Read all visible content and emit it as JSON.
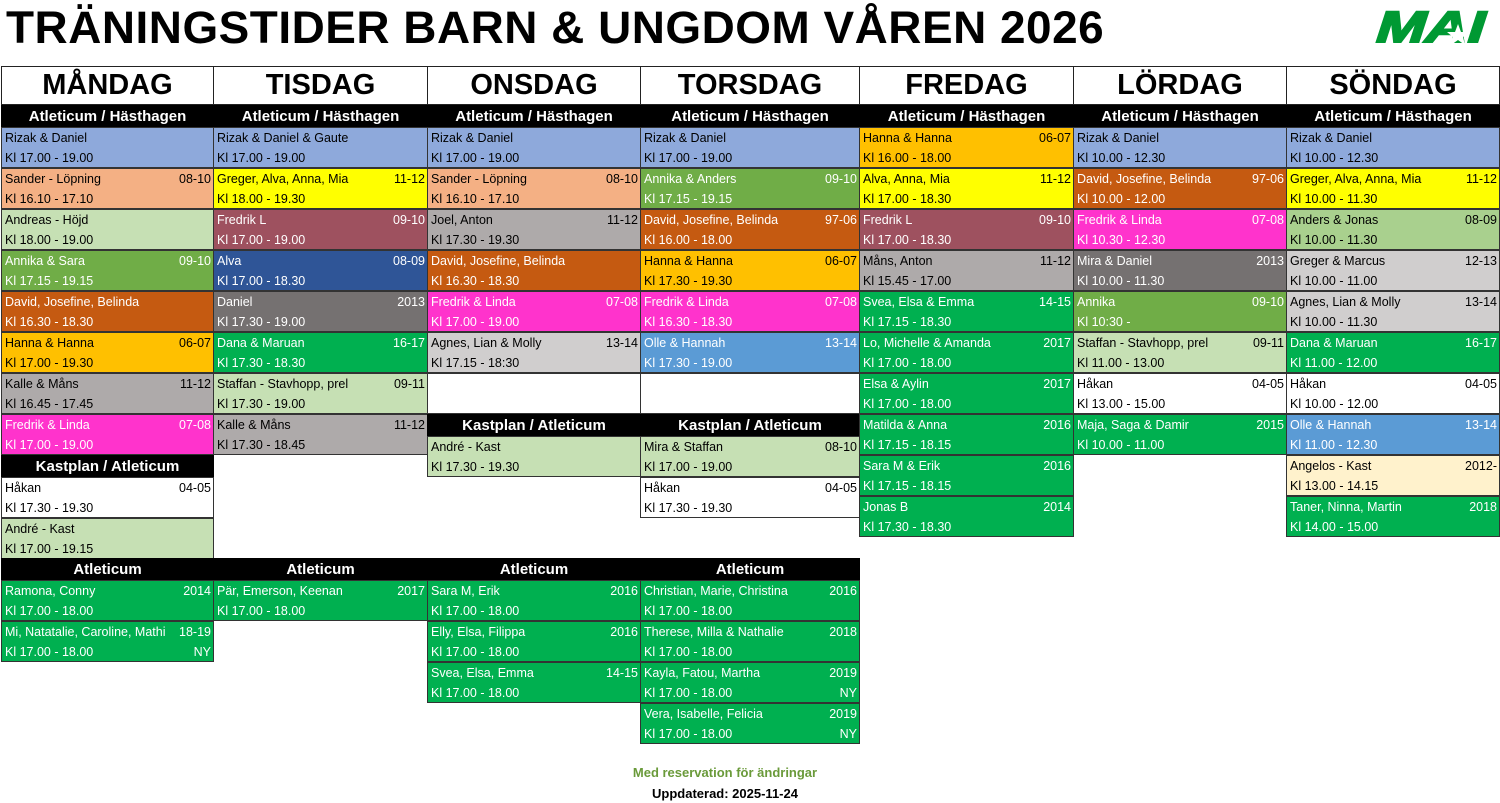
{
  "title": "TRÄNINGSTIDER BARN & UNGDOM VÅREN 2026",
  "logo_text": "MAI",
  "brand_color": "#009933",
  "footer": {
    "note": "Med reservation för ändringar",
    "updated": "Uppdaterad: 2025-11-24"
  },
  "palette": {
    "blue": {
      "bg": "#8EA9DB",
      "fg": "#000000"
    },
    "salmon": {
      "bg": "#F4B084",
      "fg": "#000000"
    },
    "lgreen": {
      "bg": "#C6E0B4",
      "fg": "#000000"
    },
    "sage": {
      "bg": "#A9D08E",
      "fg": "#000000"
    },
    "green": {
      "bg": "#70AD47",
      "fg": "#FFFFFF"
    },
    "brown": {
      "bg": "#C55A11",
      "fg": "#FFFFFF"
    },
    "gold": {
      "bg": "#FFC000",
      "fg": "#000000"
    },
    "gray": {
      "bg": "#AEAAAA",
      "fg": "#000000"
    },
    "lgray": {
      "bg": "#D0CECE",
      "fg": "#000000"
    },
    "dgray": {
      "bg": "#757171",
      "fg": "#FFFFFF"
    },
    "magenta": {
      "bg": "#FF33CC",
      "fg": "#FFFFFF"
    },
    "yellow": {
      "bg": "#FFFF00",
      "fg": "#000000"
    },
    "maroon": {
      "bg": "#9E515F",
      "fg": "#FFFFFF"
    },
    "dblue": {
      "bg": "#2F5597",
      "fg": "#FFFFFF"
    },
    "mblue": {
      "bg": "#5B9BD5",
      "fg": "#FFFFFF"
    },
    "bgreen": {
      "bg": "#00B050",
      "fg": "#FFFFFF"
    },
    "cream": {
      "bg": "#FFF2CC",
      "fg": "#000000"
    },
    "white": {
      "bg": "#FFFFFF",
      "fg": "#000000"
    }
  },
  "days": [
    {
      "name": "MÅNDAG",
      "sections": [
        {
          "title": "Atleticum / Hästhagen",
          "entries": [
            {
              "name": "Rizak & Daniel",
              "age": "",
              "time": "Kl 17.00 - 19.00",
              "note": "",
              "color": "blue"
            },
            {
              "name": "Sander  - Löpning",
              "age": "08-10",
              "time": "Kl 16.10 - 17.10",
              "note": "",
              "color": "salmon"
            },
            {
              "name": "Andreas - Höjd",
              "age": "",
              "time": "Kl 18.00 - 19.00",
              "note": "",
              "color": "lgreen"
            },
            {
              "name": "Annika & Sara",
              "age": "09-10",
              "time": "Kl 17.15 - 19.15",
              "note": "",
              "color": "green"
            },
            {
              "name": "David, Josefine, Belinda",
              "age": "",
              "time": "Kl 16.30 - 18.30",
              "note": "",
              "color": "brown"
            },
            {
              "name": "Hanna & Hanna",
              "age": "06-07",
              "time": "Kl 17.00 - 19.30",
              "note": "",
              "color": "gold"
            },
            {
              "name": "Kalle & Måns",
              "age": "11-12",
              "time": "Kl 16.45 - 17.45",
              "note": "",
              "color": "gray"
            },
            {
              "name": "Fredrik & Linda",
              "age": "07-08",
              "time": "Kl 17.00 - 19.00",
              "note": "",
              "color": "magenta"
            }
          ]
        },
        {
          "title": "Kastplan / Atleticum",
          "entries": [
            {
              "name": "Håkan",
              "age": "04-05",
              "time": "Kl 17.30 - 19.30",
              "note": "",
              "color": "white"
            },
            {
              "name": "André - Kast",
              "age": "",
              "time": "Kl 17.00 - 19.15",
              "note": "",
              "color": "lgreen"
            }
          ]
        },
        {
          "title": "Atleticum",
          "entries": [
            {
              "name": "Ramona, Conny",
              "age": "2014",
              "time": "Kl 17.00 - 18.00",
              "note": "",
              "color": "bgreen"
            },
            {
              "name": "Mi, Natatalie, Caroline, Mathi",
              "age": "18-19",
              "time": "Kl 17.00 - 18.00",
              "note": "NY",
              "color": "bgreen"
            }
          ]
        }
      ]
    },
    {
      "name": "TISDAG",
      "sections": [
        {
          "title": "Atleticum / Hästhagen",
          "entries": [
            {
              "name": "Rizak & Daniel & Gaute",
              "age": "",
              "time": "Kl 17.00 - 19.00",
              "note": "",
              "color": "blue"
            },
            {
              "name": "Greger, Alva, Anna, Mia",
              "age": "11-12",
              "time": "Kl 18.00 - 19.30",
              "note": "",
              "color": "yellow"
            },
            {
              "name": "Fredrik L",
              "age": "09-10",
              "time": "Kl 17.00 - 19.00",
              "note": "",
              "color": "maroon"
            },
            {
              "name": "Alva",
              "age": "08-09",
              "time": "Kl 17.00 - 18.30",
              "note": "",
              "color": "dblue"
            },
            {
              "name": "Daniel",
              "age": "2013",
              "time": "Kl 17.30 - 19.00",
              "note": "",
              "color": "dgray"
            },
            {
              "name": "Dana & Maruan",
              "age": "16-17",
              "time": "Kl 17.30 - 18.30",
              "note": "",
              "color": "bgreen"
            },
            {
              "name": "Staffan - Stavhopp, prel",
              "age": "09-11",
              "time": "Kl 17.30 - 19.00",
              "note": "",
              "color": "lgreen"
            },
            {
              "name": "Kalle & Måns",
              "age": "11-12",
              "time": "Kl 17.30 - 18.45",
              "note": "",
              "color": "gray"
            }
          ]
        },
        {
          "title": "Atleticum",
          "entries": [
            {
              "name": "Pär, Emerson, Keenan",
              "age": "2017",
              "time": "Kl 17.00 - 18.00",
              "note": "",
              "color": "bgreen"
            }
          ]
        }
      ]
    },
    {
      "name": "ONSDAG",
      "sections": [
        {
          "title": "Atleticum / Hästhagen",
          "entries": [
            {
              "name": "Rizak & Daniel",
              "age": "",
              "time": "Kl 17.00 - 19.00",
              "note": "",
              "color": "blue"
            },
            {
              "name": "Sander - Löpning",
              "age": "08-10",
              "time": "Kl 16.10 - 17.10",
              "note": "",
              "color": "salmon"
            },
            {
              "name": "Joel, Anton",
              "age": "11-12",
              "time": "Kl 17.30 - 19.30",
              "note": "",
              "color": "gray"
            },
            {
              "name": "David, Josefine, Belinda",
              "age": "",
              "time": "Kl 16.30 - 18.30",
              "note": "",
              "color": "brown"
            },
            {
              "name": "Fredrik & Linda",
              "age": "07-08",
              "time": "Kl 17.00 - 19.00",
              "note": "",
              "color": "magenta"
            },
            {
              "name": "Agnes, Lian & Molly",
              "age": "13-14",
              "time": "Kl 17.15 - 18:30",
              "note": "",
              "color": "lgray"
            }
          ]
        },
        {
          "title": "Kastplan / Atleticum",
          "entries": [
            {
              "name": "André - Kast",
              "age": "",
              "time": "Kl 17.30 - 19.30",
              "note": "",
              "color": "lgreen"
            }
          ]
        },
        {
          "title": "Atleticum",
          "entries": [
            {
              "name": "Sara M, Erik",
              "age": "2016",
              "time": "Kl 17.00 - 18.00",
              "note": "",
              "color": "bgreen"
            },
            {
              "name": "Elly, Elsa, Filippa",
              "age": "2016",
              "time": "Kl 17.00 - 18.00",
              "note": "",
              "color": "bgreen"
            },
            {
              "name": "Svea, Elsa, Emma",
              "age": "14-15",
              "time": "Kl 17.00 - 18.00",
              "note": "",
              "color": "bgreen"
            }
          ]
        }
      ]
    },
    {
      "name": "TORSDAG",
      "sections": [
        {
          "title": "Atleticum / Hästhagen",
          "entries": [
            {
              "name": "Rizak & Daniel",
              "age": "",
              "time": "Kl 17.00 - 19.00",
              "note": "",
              "color": "blue"
            },
            {
              "name": "Annika & Anders",
              "age": "09-10",
              "time": "Kl 17.15 - 19.15",
              "note": "",
              "color": "green"
            },
            {
              "name": "David, Josefine, Belinda",
              "age": "97-06",
              "time": "Kl 16.00 - 18.00",
              "note": "",
              "color": "brown"
            },
            {
              "name": "Hanna & Hanna",
              "age": "06-07",
              "time": "Kl 17.30 - 19.30",
              "note": "",
              "color": "gold"
            },
            {
              "name": "Fredrik & Linda",
              "age": "07-08",
              "time": "Kl 16.30 - 18.30",
              "note": "",
              "color": "magenta"
            },
            {
              "name": "Olle & Hannah",
              "age": "13-14",
              "time": "Kl 17.30 - 19.00",
              "note": "",
              "color": "mblue"
            }
          ]
        },
        {
          "title": "Kastplan / Atleticum",
          "entries": [
            {
              "name": "Mira & Staffan",
              "age": "08-10",
              "time": "Kl 17.00 - 19.00",
              "note": "",
              "color": "lgreen"
            },
            {
              "name": "Håkan",
              "age": "04-05",
              "time": "Kl 17.30 - 19.30",
              "note": "",
              "color": "white"
            }
          ]
        },
        {
          "title": "Atleticum",
          "entries": [
            {
              "name": "Christian, Marie, Christina",
              "age": "2016",
              "time": "Kl 17.00 - 18.00",
              "note": "",
              "color": "bgreen"
            },
            {
              "name": "Therese, Milla & Nathalie",
              "age": "2018",
              "time": "Kl 17.00 - 18.00",
              "note": "",
              "color": "bgreen"
            },
            {
              "name": "Kayla, Fatou, Martha",
              "age": "2019",
              "time": "Kl 17.00 - 18.00",
              "note": "NY",
              "color": "bgreen"
            },
            {
              "name": "Vera, Isabelle, Felicia",
              "age": "2019",
              "time": "Kl 17.00 - 18.00",
              "note": "NY",
              "color": "bgreen"
            }
          ]
        }
      ]
    },
    {
      "name": "FREDAG",
      "sections": [
        {
          "title": "Atleticum / Hästhagen",
          "entries": [
            {
              "name": "Hanna & Hanna",
              "age": "06-07",
              "time": "Kl 16.00 - 18.00",
              "note": "",
              "color": "gold"
            },
            {
              "name": "Alva, Anna, Mia",
              "age": "11-12",
              "time": "Kl 17.00 - 18.30",
              "note": "",
              "color": "yellow"
            },
            {
              "name": "Fredrik L",
              "age": "09-10",
              "time": "Kl 17.00 - 18.30",
              "note": "",
              "color": "maroon"
            },
            {
              "name": "Måns, Anton",
              "age": "11-12",
              "time": "Kl 15.45 - 17.00",
              "note": "",
              "color": "gray"
            },
            {
              "name": "Svea, Elsa & Emma",
              "age": "14-15",
              "time": "Kl 17.15 - 18.30",
              "note": "",
              "color": "bgreen"
            },
            {
              "name": "Lo, Michelle & Amanda",
              "age": "2017",
              "time": "Kl 17.00 - 18.00",
              "note": "",
              "color": "bgreen"
            },
            {
              "name": "Elsa & Aylin",
              "age": "2017",
              "time": "Kl 17.00 - 18.00",
              "note": "",
              "color": "bgreen"
            },
            {
              "name": "Matilda & Anna",
              "age": "2016",
              "time": "Kl 17.15 - 18.15",
              "note": "",
              "color": "bgreen"
            },
            {
              "name": "Sara M & Erik",
              "age": "2016",
              "time": "Kl 17.15 - 18.15",
              "note": "",
              "color": "bgreen"
            },
            {
              "name": "Jonas B",
              "age": "2014",
              "time": "Kl 17.30 - 18.30",
              "note": "",
              "color": "bgreen"
            }
          ]
        }
      ]
    },
    {
      "name": "LÖRDAG",
      "sections": [
        {
          "title": "Atleticum / Hästhagen",
          "entries": [
            {
              "name": "Rizak & Daniel",
              "age": "",
              "time": "Kl 10.00 - 12.30",
              "note": "",
              "color": "blue"
            },
            {
              "name": "David, Josefine, Belinda",
              "age": "97-06",
              "time": "Kl 10.00 - 12.00",
              "note": "",
              "color": "brown"
            },
            {
              "name": "Fredrik & Linda",
              "age": "07-08",
              "time": "Kl 10.30 - 12.30",
              "note": "",
              "color": "magenta"
            },
            {
              "name": "Mira & Daniel",
              "age": "2013",
              "time": "Kl 10.00 - 11.30",
              "note": "",
              "color": "dgray"
            },
            {
              "name": "Annika",
              "age": "09-10",
              "time": "Kl 10:30 -",
              "note": "",
              "color": "green"
            },
            {
              "name": "Staffan - Stavhopp, prel",
              "age": "09-11",
              "time": "Kl 11.00 - 13.00",
              "note": "",
              "color": "lgreen"
            },
            {
              "name": "Håkan",
              "age": "04-05",
              "time": "Kl 13.00 - 15.00",
              "note": "",
              "color": "white"
            },
            {
              "name": "Maja, Saga & Damir",
              "age": "2015",
              "time": "Kl 10.00 - 11.00",
              "note": "",
              "color": "bgreen"
            }
          ]
        }
      ]
    },
    {
      "name": "SÖNDAG",
      "sections": [
        {
          "title": "Atleticum / Hästhagen",
          "entries": [
            {
              "name": "Rizak & Daniel",
              "age": "",
              "time": "Kl 10.00 - 12.30",
              "note": "",
              "color": "blue"
            },
            {
              "name": "Greger, Alva, Anna, Mia",
              "age": "11-12",
              "time": "Kl 10.00 - 11.30",
              "note": "",
              "color": "yellow"
            },
            {
              "name": "Anders & Jonas",
              "age": "08-09",
              "time": "Kl 10.00 - 11.30",
              "note": "",
              "color": "sage"
            },
            {
              "name": "Greger & Marcus",
              "age": "12-13",
              "time": "Kl 10.00 - 11.00",
              "note": "",
              "color": "lgray"
            },
            {
              "name": "Agnes, Lian & Molly",
              "age": "13-14",
              "time": "Kl 10.00 - 11.30",
              "note": "",
              "color": "lgray"
            },
            {
              "name": "Dana & Maruan",
              "age": "16-17",
              "time": "Kl 11.00 - 12.00",
              "note": "",
              "color": "bgreen"
            },
            {
              "name": "Håkan",
              "age": "04-05",
              "time": "Kl 10.00 - 12.00",
              "note": "",
              "color": "white"
            },
            {
              "name": "Olle & Hannah",
              "age": "13-14",
              "time": "Kl 11.00 - 12.30",
              "note": "",
              "color": "mblue"
            },
            {
              "name": "Angelos - Kast",
              "age": "2012-",
              "time": "Kl 13.00 - 14.15",
              "note": "",
              "color": "cream"
            },
            {
              "name": "Taner, Ninna, Martin",
              "age": "2018",
              "time": "Kl 14.00 - 15.00",
              "note": "",
              "color": "bgreen"
            }
          ]
        }
      ]
    }
  ]
}
